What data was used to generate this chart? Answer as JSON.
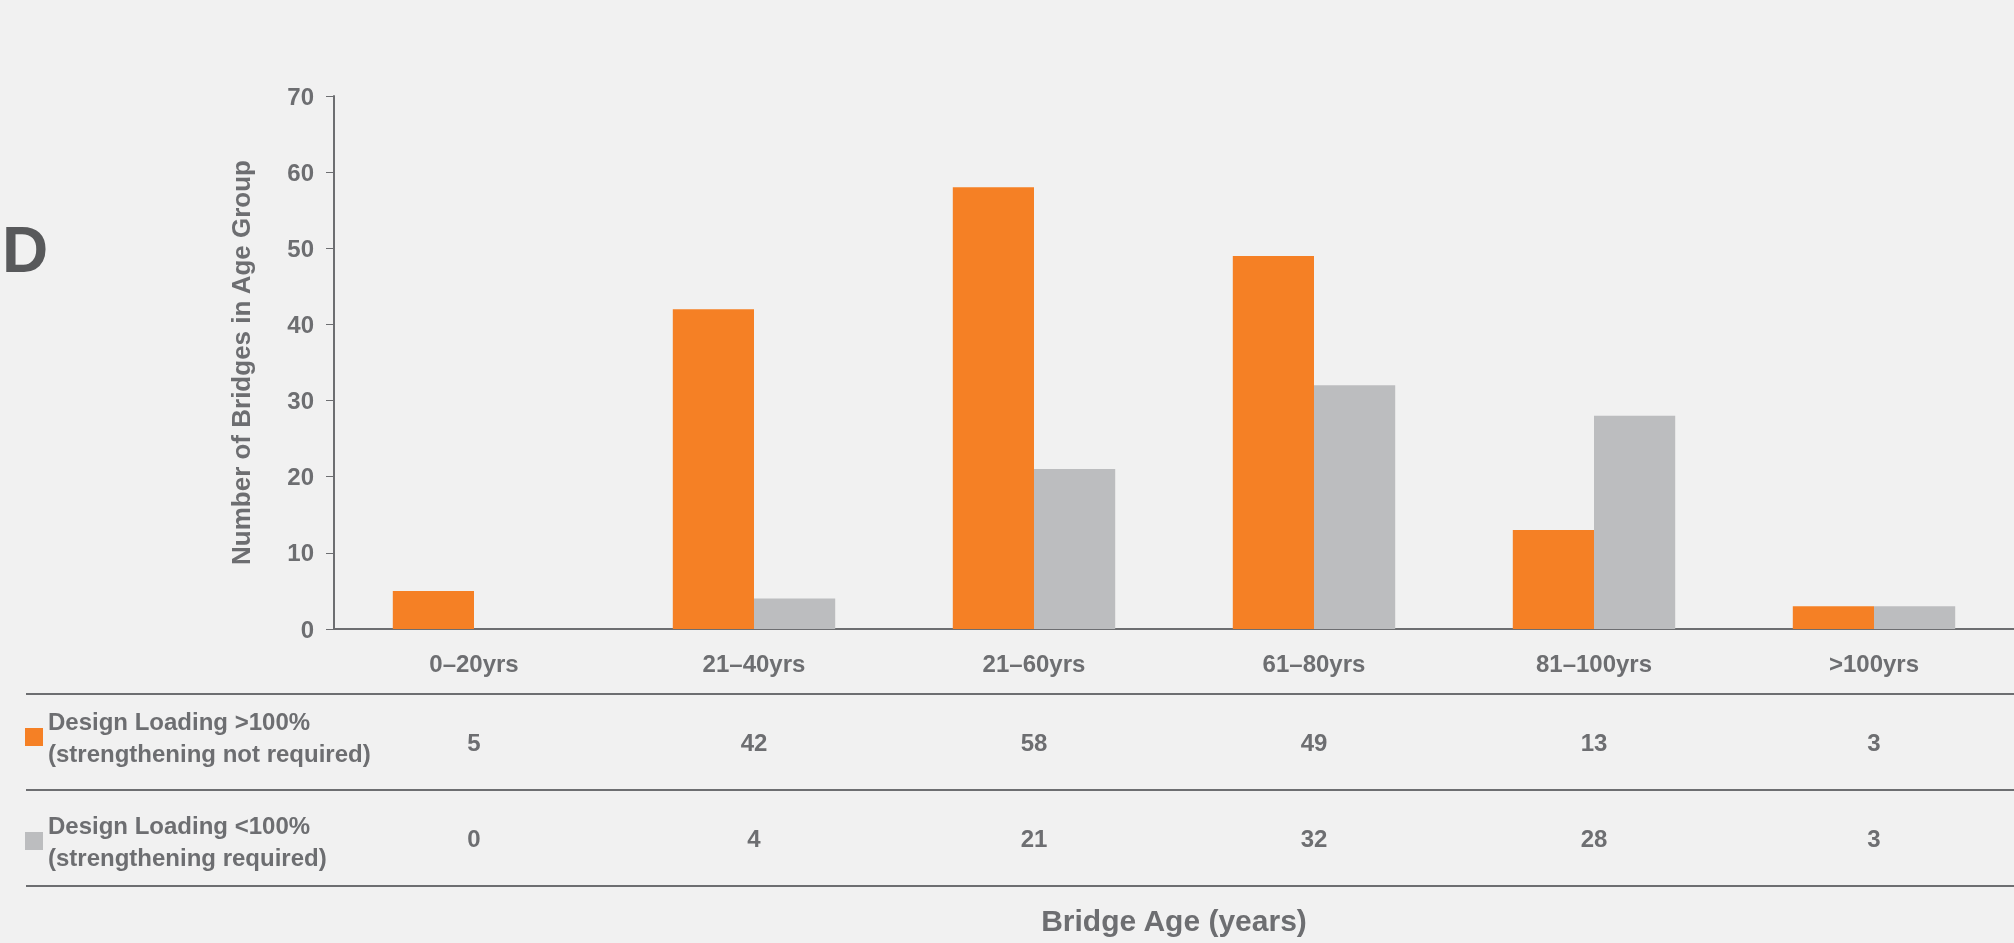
{
  "chart_data": {
    "type": "bar",
    "ylabel": "Number of Bridges in Age Group",
    "categories": [
      "0–20yrs",
      "21–40yrs",
      "21–60yrs",
      "61–80yrs",
      "81–100yrs",
      ">100yrs"
    ],
    "series": [
      {
        "name": "Design Loading >100%\n(strengthening not required)",
        "color": "#f58025",
        "values": [
          5,
          42,
          58,
          49,
          13,
          3
        ]
      },
      {
        "name": "Design Loading <100%\n(strengthening required)",
        "color": "#bcbdbf",
        "values": [
          0,
          4,
          21,
          32,
          28,
          3
        ]
      }
    ],
    "ylim": [
      0,
      70
    ],
    "yticks": [
      0,
      10,
      20,
      30,
      40,
      50,
      60,
      70
    ],
    "grid": false,
    "legend": "bottom left",
    "data_labels": true,
    "annotations": [
      "D",
      "Bridge Age (years)"
    ]
  }
}
